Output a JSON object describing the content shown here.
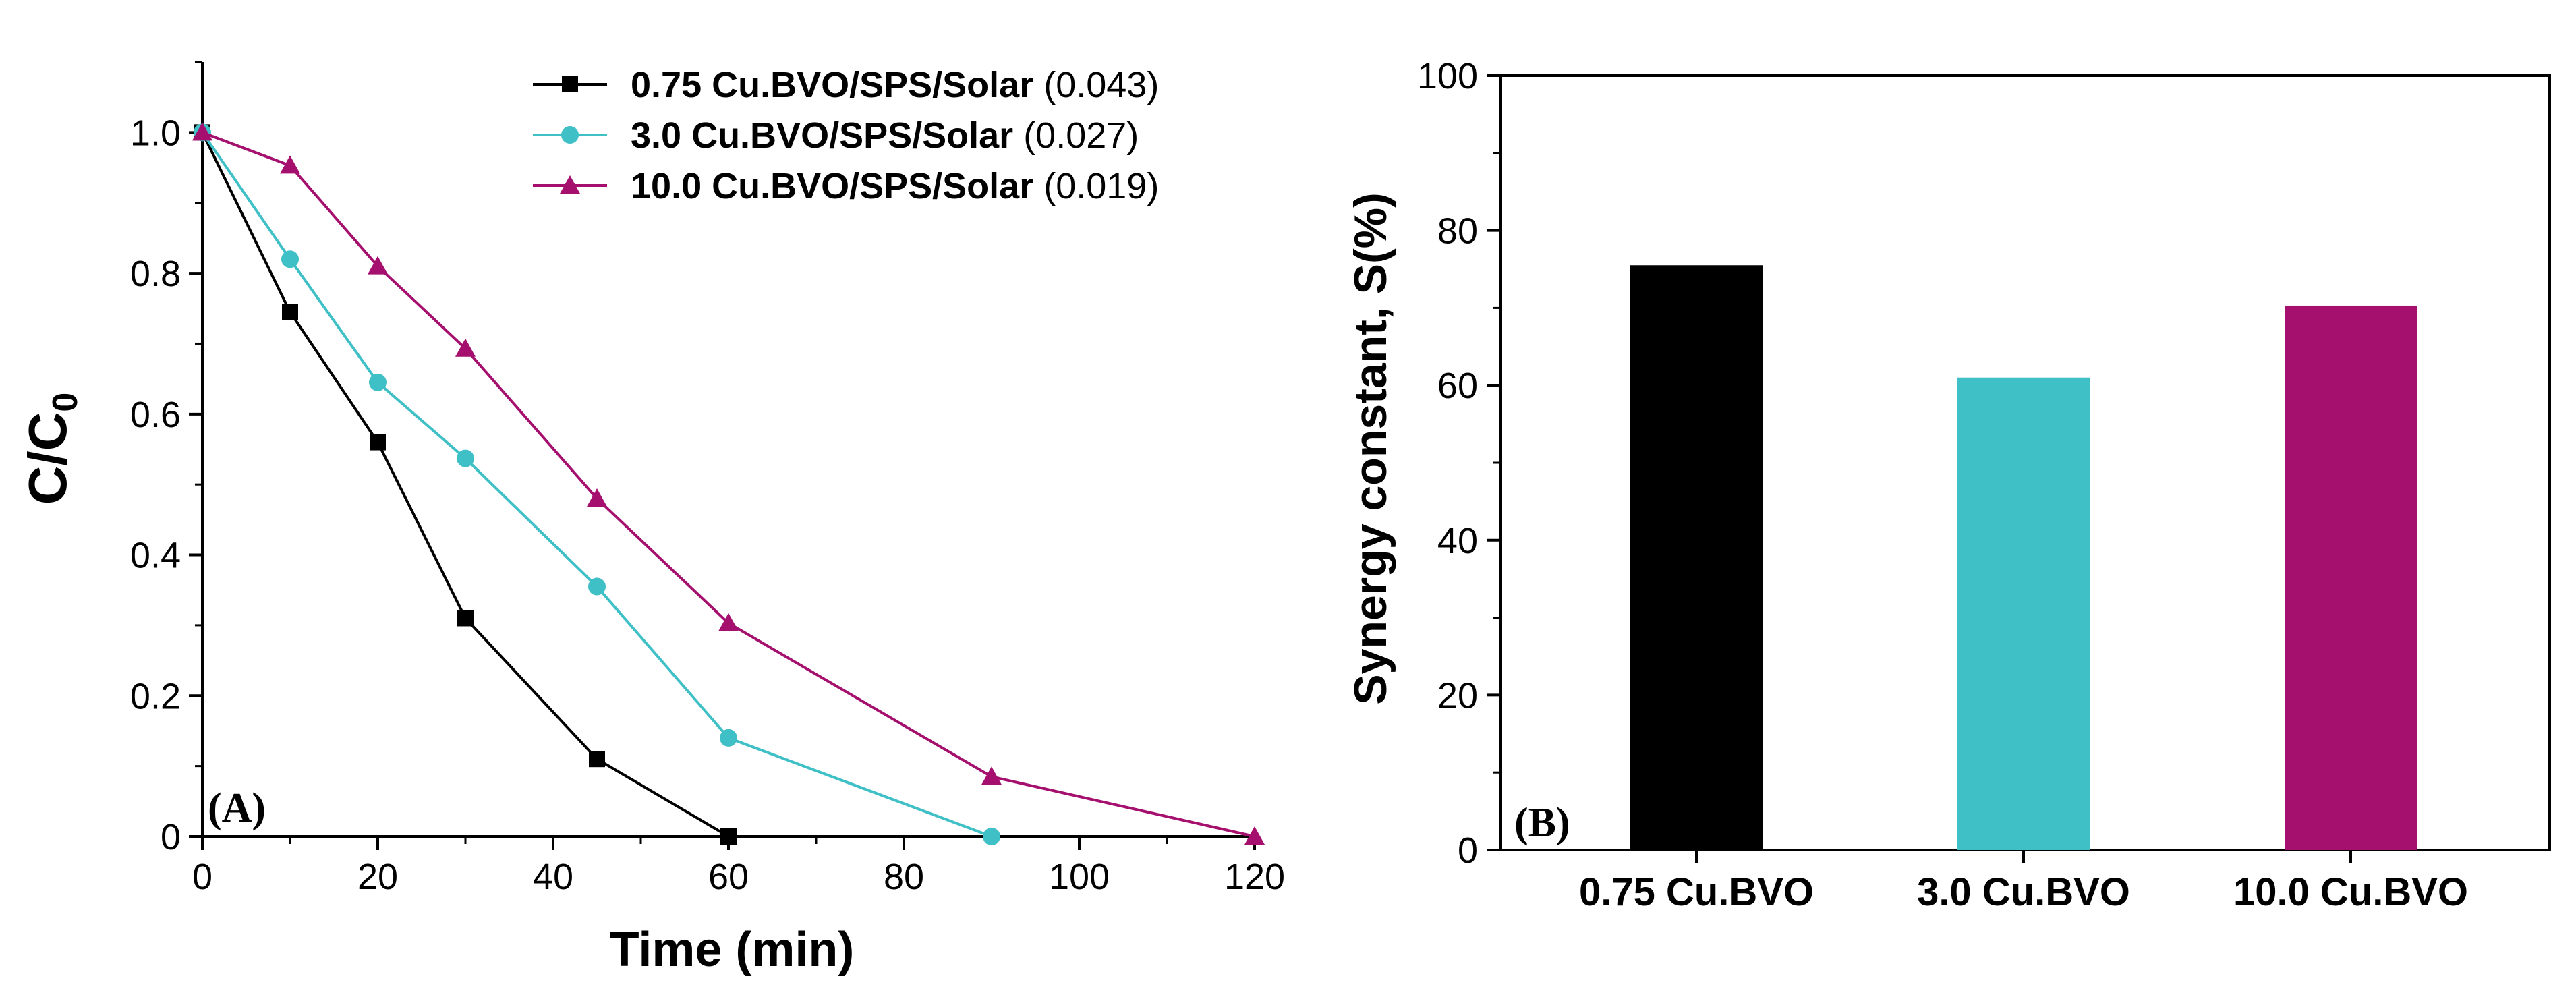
{
  "colors": {
    "black": "#000000",
    "teal": "#3fbfc6",
    "magenta": "#a50f6e"
  },
  "chart_data": [
    {
      "type": "line",
      "panel_label": "(A)",
      "xlabel": "Time (min)",
      "ylabel": "C/C",
      "ylabel_subscript": "0",
      "xlim": [
        0,
        120
      ],
      "ylim": [
        0,
        1.1
      ],
      "xticks": [
        "0",
        "20",
        "40",
        "60",
        "80",
        "100",
        "120"
      ],
      "yticks": [
        "0",
        "0.2",
        "0.4",
        "0.6",
        "0.8",
        "1.0"
      ],
      "legend_position": "top-right",
      "series": [
        {
          "name": "0.75 Cu.BVO/SPS/Solar",
          "rate": "(0.043)",
          "marker": "square",
          "color": "#000000",
          "x": [
            0,
            10,
            20,
            30,
            45,
            60
          ],
          "y": [
            1.0,
            0.745,
            0.56,
            0.31,
            0.11,
            0.0
          ]
        },
        {
          "name": "3.0 Cu.BVO/SPS/Solar",
          "rate": "(0.027)",
          "marker": "circle",
          "color": "#3fbfc6",
          "x": [
            0,
            10,
            20,
            30,
            45,
            60,
            90
          ],
          "y": [
            1.0,
            0.82,
            0.645,
            0.537,
            0.355,
            0.14,
            0.0
          ]
        },
        {
          "name": "10.0 Cu.BVO/SPS/Solar",
          "rate": "(0.019)",
          "marker": "triangle",
          "color": "#a50f6e",
          "x": [
            0,
            10,
            20,
            30,
            45,
            60,
            90,
            120
          ],
          "y": [
            1.0,
            0.953,
            0.81,
            0.693,
            0.48,
            0.303,
            0.085,
            0.0
          ]
        }
      ]
    },
    {
      "type": "bar",
      "panel_label": "(B)",
      "xlabel": "",
      "ylabel": "Synergy constant, S(%)",
      "ylim": [
        0,
        100
      ],
      "yticks": [
        "0",
        "20",
        "40",
        "60",
        "80",
        "100"
      ],
      "categories": [
        "0.75 Cu.BVO",
        "3.0 Cu.BVO",
        "10.0 Cu.BVO"
      ],
      "values": [
        75.5,
        61.0,
        70.3
      ],
      "colors": [
        "#000000",
        "#3fbfc6",
        "#a50f6e"
      ]
    }
  ]
}
